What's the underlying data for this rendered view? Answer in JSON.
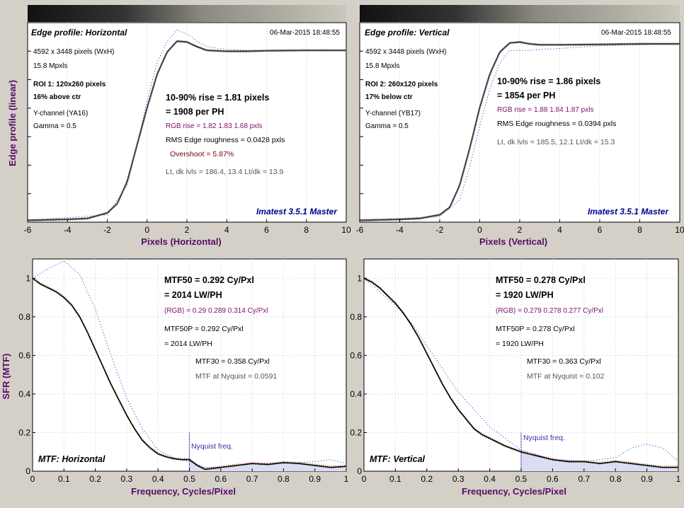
{
  "colors": {
    "background": "#d4d0c8",
    "plot_bg": "#ffffff",
    "measured_line": "#000000",
    "blue_dots": "#2222cc",
    "red_dots": "#cc2222",
    "green_dots": "#22aa22",
    "nyquist_fill": "#dcdcf4",
    "axis_label": "#5a0a64",
    "brand": "#00008b"
  },
  "edge_h": {
    "title": "Edge profile: Horizontal",
    "date": "06-Mar-2015 18:48:55",
    "pixels": "4592 x 3448 pixels (WxH)",
    "mpxls": "15.8 Mpxls",
    "roi": "ROI 1:  120x260 pixels",
    "position": "16% above ctr",
    "channel": "Y-channel  (YA16)",
    "gamma": "Gamma = 0.5",
    "rise": "10-90% rise = 1.81 pixels",
    "per_ph": "= 1908 per PH",
    "rgb_rise": "RGB rise = 1.82  1.83  1.68 pxls",
    "rms": "RMS Edge roughness = 0.0428 pxls",
    "overshoot": "Overshoot = 5.87%",
    "levels": "Lt, dk lvls = 186.4, 13.4   Lt/dk = 13.9",
    "brand": "Imatest 3.5.1 Master",
    "xlabel": "Pixels (Horizontal)",
    "ylabel": "Edge profile (linear)"
  },
  "edge_v": {
    "title": "Edge profile: Vertical",
    "date": "06-Mar-2015 18:48:55",
    "pixels": "4592 x 3448 pixels (WxH)",
    "mpxls": "15.8 Mpxls",
    "roi": "ROI 2:  260x120 pixels",
    "position": "17% below ctr",
    "channel": "Y-channel  (YB17)",
    "gamma": "Gamma = 0.5",
    "rise": "10-90% rise = 1.86 pixels",
    "per_ph": "= 1854 per PH",
    "rgb_rise": "RGB rise = 1.88  1.84  1.87 pxls",
    "rms": "RMS Edge roughness = 0.0394 pxls",
    "levels": "Lt, dk lvls = 185.5, 12.1   Lt/dk = 15.3",
    "brand": "Imatest 3.5.1 Master",
    "xlabel": "Pixels (Vertical)"
  },
  "mtf_h": {
    "name": "MTF: Horizontal",
    "mtf50": "MTF50 = 0.292 Cy/Pxl",
    "lwph": "= 2014 LW/PH",
    "rgb": "(RGB) = 0.29  0.289  0.314 Cy/Pxl",
    "mtf50p": "MTF50P = 0.292 Cy/Pxl",
    "lwph_p": "= 2014 LW/PH",
    "mtf30": "MTF30 = 0.358 Cy/Pxl",
    "nyq_val": "MTF at Nyquist = 0.0591",
    "nyq_label": "Nyquist freq.",
    "xlabel": "Frequency, Cycles/Pixel",
    "ylabel": "SFR (MTF)"
  },
  "mtf_v": {
    "name": "MTF: Vertical",
    "mtf50": "MTF50 = 0.278 Cy/Pxl",
    "lwph": "= 1920 LW/PH",
    "rgb": "(RGB) = 0.279  0.278  0.277 Cy/Pxl",
    "mtf50p": "MTF50P = 0.278 Cy/Pxl",
    "lwph_p": "= 1920 LW/PH",
    "mtf30": "MTF30 = 0.363 Cy/Pxl",
    "nyq_val": "MTF at Nyquist = 0.102",
    "nyq_label": "Nyquist freq.",
    "xlabel": "Frequency, Cycles/Pixel"
  },
  "chart_data": [
    {
      "type": "line",
      "xlabel": "Pixels (Horizontal)",
      "ylabel": "Edge profile (linear)",
      "xlim": [
        -6,
        10
      ],
      "ylim": [
        0,
        1.08
      ],
      "xticks": [
        -6,
        -4,
        -2,
        0,
        2,
        4,
        6,
        8,
        10
      ],
      "series": [
        {
          "x": [
            -6,
            -4,
            -3,
            -2,
            -1.5,
            -1,
            -0.5,
            0,
            0.5,
            1,
            1.5,
            2,
            2.5,
            3,
            4,
            5,
            6,
            8,
            10
          ],
          "values": [
            0.01,
            0.015,
            0.02,
            0.05,
            0.1,
            0.22,
            0.42,
            0.62,
            0.8,
            0.92,
            0.98,
            0.975,
            0.95,
            0.93,
            0.925,
            0.925,
            0.928,
            0.93,
            0.93
          ]
        },
        {
          "x": [
            -6,
            -2,
            -1,
            -0.5,
            0,
            0.5,
            1,
            1.5,
            2,
            2.5,
            3,
            4,
            5,
            6,
            10
          ],
          "values": [
            0.01,
            0.04,
            0.2,
            0.42,
            0.66,
            0.86,
            0.98,
            1.04,
            1.02,
            0.98,
            0.95,
            0.935,
            0.93,
            0.93,
            0.93
          ]
        }
      ]
    },
    {
      "type": "line",
      "xlabel": "Pixels (Vertical)",
      "xlim": [
        -6,
        10
      ],
      "ylim": [
        0,
        1.08
      ],
      "xticks": [
        -6,
        -4,
        -2,
        0,
        2,
        4,
        6,
        8,
        10
      ],
      "series": [
        {
          "x": [
            -6,
            -4,
            -3,
            -2,
            -1.5,
            -1,
            -0.5,
            0,
            0.5,
            1,
            1.5,
            2,
            2.5,
            3,
            4,
            6,
            8,
            10
          ],
          "values": [
            0.01,
            0.015,
            0.02,
            0.04,
            0.08,
            0.2,
            0.4,
            0.62,
            0.8,
            0.92,
            0.97,
            0.975,
            0.965,
            0.96,
            0.96,
            0.962,
            0.965,
            0.965
          ]
        },
        {
          "x": [
            -6,
            -2,
            -1,
            -0.5,
            0,
            0.5,
            1,
            1.5,
            2,
            2.5,
            3,
            4,
            6,
            10
          ],
          "values": [
            0.01,
            0.03,
            0.12,
            0.3,
            0.52,
            0.72,
            0.86,
            0.93,
            0.93,
            0.93,
            0.935,
            0.94,
            0.955,
            0.965
          ]
        }
      ]
    },
    {
      "type": "line",
      "xlabel": "Frequency, Cycles/Pixel",
      "ylabel": "SFR (MTF)",
      "xlim": [
        0,
        1
      ],
      "ylim": [
        0,
        1.1
      ],
      "xticks": [
        0,
        0.1,
        0.2,
        0.3,
        0.4,
        0.5,
        0.6,
        0.7,
        0.8,
        0.9,
        1
      ],
      "yticks": [
        0,
        0.2,
        0.4,
        0.6,
        0.8,
        1
      ],
      "nyquist": 0.5,
      "series": [
        {
          "x": [
            0,
            0.025,
            0.05,
            0.075,
            0.1,
            0.125,
            0.15,
            0.175,
            0.2,
            0.225,
            0.25,
            0.275,
            0.3,
            0.325,
            0.35,
            0.375,
            0.4,
            0.425,
            0.45,
            0.475,
            0.5,
            0.525,
            0.55,
            0.575,
            0.6,
            0.65,
            0.7,
            0.75,
            0.8,
            0.85,
            0.9,
            0.95,
            1
          ],
          "values": [
            1.0,
            0.97,
            0.95,
            0.93,
            0.9,
            0.86,
            0.8,
            0.72,
            0.63,
            0.54,
            0.45,
            0.37,
            0.29,
            0.22,
            0.16,
            0.12,
            0.09,
            0.075,
            0.065,
            0.06,
            0.06,
            0.03,
            0.01,
            0.015,
            0.02,
            0.03,
            0.04,
            0.035,
            0.045,
            0.04,
            0.03,
            0.02,
            0.025
          ]
        },
        {
          "x": [
            0,
            0.05,
            0.1,
            0.15,
            0.2,
            0.25,
            0.3,
            0.35,
            0.4,
            0.45,
            0.5,
            0.55,
            0.6,
            0.7,
            0.8,
            0.9,
            0.95,
            1
          ],
          "values": [
            1.0,
            1.05,
            1.09,
            1.02,
            0.84,
            0.6,
            0.38,
            0.22,
            0.11,
            0.07,
            0.05,
            0.02,
            0.02,
            0.04,
            0.04,
            0.05,
            0.06,
            0.04
          ]
        }
      ]
    },
    {
      "type": "line",
      "xlabel": "Frequency, Cycles/Pixel",
      "xlim": [
        0,
        1
      ],
      "ylim": [
        0,
        1.1
      ],
      "xticks": [
        0,
        0.1,
        0.2,
        0.3,
        0.4,
        0.5,
        0.6,
        0.7,
        0.8,
        0.9,
        1
      ],
      "yticks": [
        0,
        0.2,
        0.4,
        0.6,
        0.8,
        1
      ],
      "nyquist": 0.5,
      "series": [
        {
          "x": [
            0,
            0.025,
            0.05,
            0.075,
            0.1,
            0.125,
            0.15,
            0.175,
            0.2,
            0.225,
            0.25,
            0.275,
            0.3,
            0.325,
            0.35,
            0.375,
            0.4,
            0.425,
            0.45,
            0.475,
            0.5,
            0.55,
            0.6,
            0.65,
            0.7,
            0.75,
            0.8,
            0.85,
            0.9,
            0.95,
            1
          ],
          "values": [
            1.0,
            0.98,
            0.95,
            0.91,
            0.87,
            0.82,
            0.76,
            0.69,
            0.61,
            0.53,
            0.45,
            0.38,
            0.32,
            0.27,
            0.22,
            0.19,
            0.17,
            0.15,
            0.13,
            0.115,
            0.1,
            0.08,
            0.06,
            0.05,
            0.05,
            0.04,
            0.05,
            0.04,
            0.03,
            0.02,
            0.02
          ]
        },
        {
          "x": [
            0,
            0.05,
            0.1,
            0.15,
            0.2,
            0.3,
            0.4,
            0.5,
            0.6,
            0.7,
            0.8,
            0.85,
            0.9,
            0.95,
            1
          ],
          "values": [
            1.0,
            0.93,
            0.86,
            0.77,
            0.65,
            0.41,
            0.23,
            0.11,
            0.06,
            0.05,
            0.07,
            0.12,
            0.14,
            0.12,
            0.05
          ]
        }
      ]
    }
  ]
}
